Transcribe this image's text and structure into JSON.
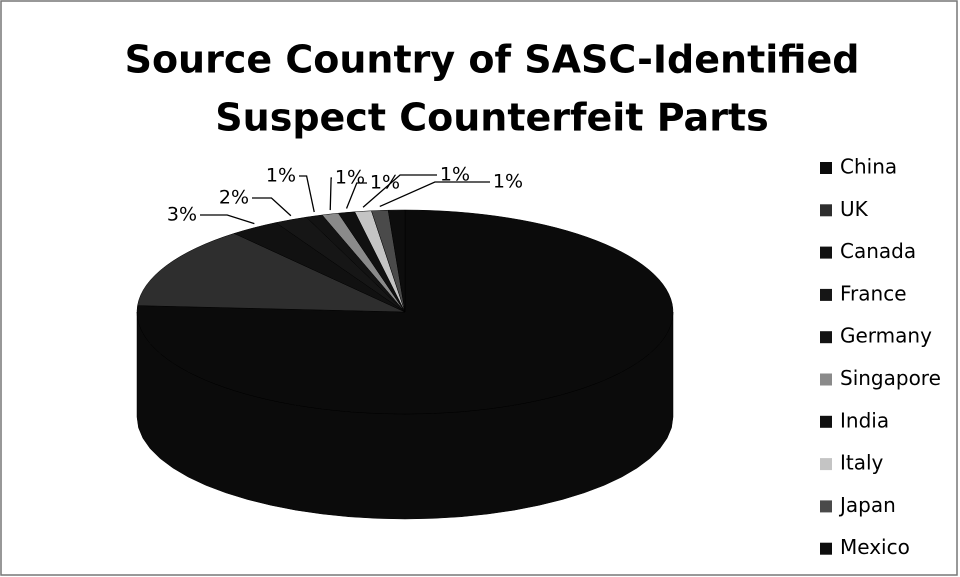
{
  "chart_data": {
    "type": "pie3d",
    "title_lines": [
      "Source Country of SASC-Identified",
      "Suspect Counterfeit Parts"
    ],
    "categories": [
      "China",
      "UK",
      "Canada",
      "France",
      "Germany",
      "Singapore",
      "India",
      "Italy",
      "Japan",
      "Mexico"
    ],
    "values": [
      76,
      13,
      3,
      2,
      1,
      1,
      1,
      1,
      1,
      1
    ],
    "value_labels": [
      null,
      null,
      "3%",
      "2%",
      "1%",
      "1%",
      "1%",
      "1%",
      "1%",
      null
    ],
    "colors": [
      "#0b0b0b",
      "#2e2e2e",
      "#111111",
      "#161616",
      "#131313",
      "#8a8a8a",
      "#101010",
      "#c4c4c4",
      "#4a4a4a",
      "#0d0d0d"
    ]
  }
}
